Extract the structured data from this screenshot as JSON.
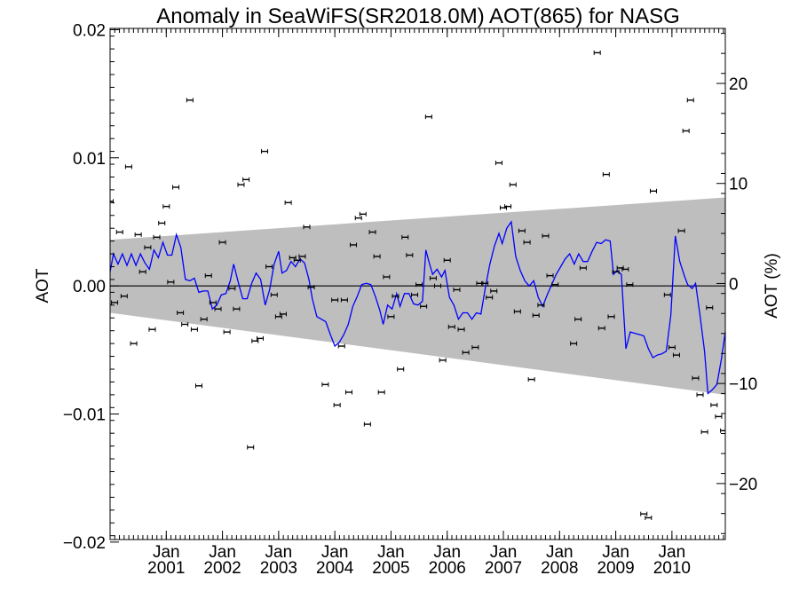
{
  "chart_data": {
    "type": "scatter",
    "title": "Anomaly in SeaWiFS(SR2018.0M) AOT(865) for NASG",
    "xlabel": "",
    "ylabel": "AOT",
    "y2label": "AOT (%)",
    "xlim": [
      2000.0,
      2010.95
    ],
    "ylim": [
      -0.0198,
      0.0201
    ],
    "y2lim": [
      -25.6,
      25.5
    ],
    "grid": false,
    "x_ticks": [
      {
        "x": 2001.0,
        "label1": "Jan",
        "label2": "2001"
      },
      {
        "x": 2002.0,
        "label1": "Jan",
        "label2": "2002"
      },
      {
        "x": 2003.0,
        "label1": "Jan",
        "label2": "2003"
      },
      {
        "x": 2004.0,
        "label1": "Jan",
        "label2": "2004"
      },
      {
        "x": 2005.0,
        "label1": "Jan",
        "label2": "2005"
      },
      {
        "x": 2006.0,
        "label1": "Jan",
        "label2": "2006"
      },
      {
        "x": 2007.0,
        "label1": "Jan",
        "label2": "2007"
      },
      {
        "x": 2008.0,
        "label1": "Jan",
        "label2": "2008"
      },
      {
        "x": 2009.0,
        "label1": "Jan",
        "label2": "2009"
      },
      {
        "x": 2010.0,
        "label1": "Jan",
        "label2": "2010"
      }
    ],
    "y_ticks": [
      {
        "v": 0.02,
        "label": "0.02"
      },
      {
        "v": 0.01,
        "label": "0.01"
      },
      {
        "v": 0.0,
        "label": "0.00"
      },
      {
        "v": -0.01,
        "label": "−0.01"
      },
      {
        "v": -0.02,
        "label": "−0.02"
      }
    ],
    "y2_ticks": [
      {
        "v": 20,
        "label": "20"
      },
      {
        "v": 10,
        "label": "10"
      },
      {
        "v": 0,
        "label": "0"
      },
      {
        "v": -10,
        "label": "−10"
      },
      {
        "v": -20,
        "label": "−20"
      }
    ],
    "colors": {
      "band": "#bebebe",
      "line": "#0000ff",
      "points": "#000000",
      "zero": "#000000"
    },
    "band": {
      "x": [
        2000.0,
        2010.95
      ],
      "upper": [
        0.0036,
        0.0069
      ],
      "lower": [
        -0.0021,
        -0.0085
      ]
    },
    "points": [
      [
        2000.0,
        0.0066
      ],
      [
        2000.08,
        -0.0013
      ],
      [
        2000.17,
        0.0042
      ],
      [
        2000.25,
        -0.0008
      ],
      [
        2000.33,
        0.0093
      ],
      [
        2000.42,
        -0.0045
      ],
      [
        2000.5,
        0.004
      ],
      [
        2000.58,
        0.0011
      ],
      [
        2000.67,
        0.003
      ],
      [
        2000.75,
        -0.0034
      ],
      [
        2000.83,
        0.0038
      ],
      [
        2000.92,
        0.0049
      ],
      [
        2001.0,
        0.0062
      ],
      [
        2001.08,
        0.0003
      ],
      [
        2001.17,
        0.0077
      ],
      [
        2001.25,
        -0.0021
      ],
      [
        2001.33,
        -0.003
      ],
      [
        2001.42,
        0.0145
      ],
      [
        2001.5,
        -0.0034
      ],
      [
        2001.58,
        -0.0078
      ],
      [
        2001.67,
        -0.0026
      ],
      [
        2001.75,
        0.0008
      ],
      [
        2001.83,
        -0.0013
      ],
      [
        2001.92,
        -0.0018
      ],
      [
        2002.0,
        0.0034
      ],
      [
        2002.08,
        -0.0036
      ],
      [
        2002.17,
        -0.0002
      ],
      [
        2002.25,
        -0.0018
      ],
      [
        2002.33,
        0.0079
      ],
      [
        2002.42,
        0.0083
      ],
      [
        2002.5,
        -0.0126
      ],
      [
        2002.58,
        -0.0043
      ],
      [
        2002.67,
        -0.0041
      ],
      [
        2002.75,
        0.0105
      ],
      [
        2002.83,
        0.0015
      ],
      [
        2002.92,
        -0.0007
      ],
      [
        2003.0,
        -0.0024
      ],
      [
        2003.08,
        -0.0022
      ],
      [
        2003.17,
        0.0065
      ],
      [
        2003.25,
        0.0022
      ],
      [
        2003.33,
        0.002
      ],
      [
        2003.42,
        0.0023
      ],
      [
        2003.5,
        0.0046
      ],
      [
        2003.58,
        -0.0001
      ],
      [
        2003.83,
        -0.0077
      ],
      [
        2004.0,
        -0.0011
      ],
      [
        2004.04,
        -0.0093
      ],
      [
        2004.12,
        -0.0047
      ],
      [
        2004.17,
        -0.0011
      ],
      [
        2004.25,
        -0.0083
      ],
      [
        2004.33,
        0.0032
      ],
      [
        2004.42,
        0.0053
      ],
      [
        2004.5,
        0.0056
      ],
      [
        2004.58,
        -0.0108
      ],
      [
        2004.67,
        0.0042
      ],
      [
        2004.75,
        0.0023
      ],
      [
        2004.83,
        -0.0083
      ],
      [
        2004.92,
        0.0007
      ],
      [
        2005.0,
        -0.0024
      ],
      [
        2005.08,
        -0.0008
      ],
      [
        2005.17,
        -0.0065
      ],
      [
        2005.25,
        0.0038
      ],
      [
        2005.33,
        0.0024
      ],
      [
        2005.42,
        -0.0007
      ],
      [
        2005.5,
        0.0001
      ],
      [
        2005.58,
        -0.0016
      ],
      [
        2005.67,
        0.0132
      ],
      [
        2005.75,
        0.0006
      ],
      [
        2005.83,
        0.0
      ],
      [
        2005.92,
        -0.0058
      ],
      [
        2006.0,
        0.002
      ],
      [
        2006.08,
        -0.0032
      ],
      [
        2006.17,
        -0.0003
      ],
      [
        2006.25,
        -0.0034
      ],
      [
        2006.33,
        -0.0052
      ],
      [
        2006.5,
        -0.0048
      ],
      [
        2006.58,
        0.0002
      ],
      [
        2006.67,
        0.0002
      ],
      [
        2006.75,
        -0.0009
      ],
      [
        2006.83,
        -0.0004
      ],
      [
        2006.92,
        0.0096
      ],
      [
        2007.0,
        0.0061
      ],
      [
        2007.08,
        0.0062
      ],
      [
        2007.17,
        0.0079
      ],
      [
        2007.25,
        -0.002
      ],
      [
        2007.33,
        0.0043
      ],
      [
        2007.42,
        0.0034
      ],
      [
        2007.5,
        -0.0073
      ],
      [
        2007.58,
        -0.0023
      ],
      [
        2007.67,
        -0.0015
      ],
      [
        2007.75,
        0.0039
      ],
      [
        2007.83,
        0.0008
      ],
      [
        2007.92,
        0.0001
      ],
      [
        2008.25,
        -0.0045
      ],
      [
        2008.33,
        -0.0026
      ],
      [
        2008.42,
        0.0014
      ],
      [
        2008.67,
        0.0182
      ],
      [
        2008.75,
        -0.0033
      ],
      [
        2008.83,
        0.0087
      ],
      [
        2008.92,
        -0.0024
      ],
      [
        2009.0,
        0.0011
      ],
      [
        2009.08,
        0.0014
      ],
      [
        2009.17,
        0.0013
      ],
      [
        2009.25,
        0.0001
      ],
      [
        2009.5,
        -0.0178
      ],
      [
        2009.58,
        -0.0181
      ],
      [
        2009.67,
        0.0074
      ],
      [
        2009.92,
        -0.0007
      ],
      [
        2010.0,
        -0.0048
      ],
      [
        2010.08,
        -0.0054
      ],
      [
        2010.17,
        0.0043
      ],
      [
        2010.25,
        0.0121
      ],
      [
        2010.33,
        0.0145
      ],
      [
        2010.42,
        -0.0072
      ],
      [
        2010.5,
        -0.0085
      ],
      [
        2010.58,
        -0.0114
      ],
      [
        2010.67,
        -0.0017
      ],
      [
        2010.75,
        -0.0093
      ],
      [
        2010.83,
        -0.0102
      ],
      [
        2010.92,
        -0.0113
      ]
    ],
    "line": [
      [
        2000.0,
        0.0011
      ],
      [
        2000.06,
        0.0025
      ],
      [
        2000.14,
        0.0017
      ],
      [
        2000.22,
        0.0025
      ],
      [
        2000.3,
        0.0016
      ],
      [
        2000.38,
        0.0025
      ],
      [
        2000.46,
        0.0016
      ],
      [
        2000.54,
        0.0025
      ],
      [
        2000.62,
        0.0018
      ],
      [
        2000.7,
        0.0013
      ],
      [
        2000.78,
        0.0028
      ],
      [
        2000.86,
        0.0022
      ],
      [
        2000.94,
        0.0034
      ],
      [
        2001.02,
        0.0024
      ],
      [
        2001.1,
        0.0024
      ],
      [
        2001.18,
        0.004
      ],
      [
        2001.26,
        0.003
      ],
      [
        2001.34,
        0.0005
      ],
      [
        2001.42,
        0.0004
      ],
      [
        2001.5,
        0.0006
      ],
      [
        2001.58,
        -0.0005
      ],
      [
        2001.66,
        -0.0004
      ],
      [
        2001.74,
        -0.0004
      ],
      [
        2001.82,
        -0.0018
      ],
      [
        2001.9,
        -0.0015
      ],
      [
        2001.98,
        -0.0007
      ],
      [
        2002.06,
        -0.0006
      ],
      [
        2002.14,
        0.0004
      ],
      [
        2002.2,
        0.0017
      ],
      [
        2002.28,
        0.0003
      ],
      [
        2002.36,
        -0.001
      ],
      [
        2002.44,
        -0.001
      ],
      [
        2002.52,
        0.0002
      ],
      [
        2002.6,
        0.001
      ],
      [
        2002.68,
        0.0005
      ],
      [
        2002.76,
        -0.0015
      ],
      [
        2002.84,
        -0.0003
      ],
      [
        2002.92,
        0.0017
      ],
      [
        2003.0,
        0.0027
      ],
      [
        2003.06,
        0.001
      ],
      [
        2003.14,
        0.0012
      ],
      [
        2003.22,
        0.0019
      ],
      [
        2003.3,
        0.0015
      ],
      [
        2003.38,
        0.0021
      ],
      [
        2003.46,
        0.0018
      ],
      [
        2003.54,
        0.0005
      ],
      [
        2003.6,
        -0.001
      ],
      [
        2003.68,
        -0.0024
      ],
      [
        2003.76,
        -0.0026
      ],
      [
        2003.84,
        -0.0028
      ],
      [
        2003.92,
        -0.0038
      ],
      [
        2004.0,
        -0.0047
      ],
      [
        2004.08,
        -0.0044
      ],
      [
        2004.16,
        -0.0038
      ],
      [
        2004.24,
        -0.003
      ],
      [
        2004.32,
        -0.0016
      ],
      [
        2004.4,
        -0.0008
      ],
      [
        2004.48,
        0.0001
      ],
      [
        2004.56,
        0.0002
      ],
      [
        2004.64,
        0.0001
      ],
      [
        2004.72,
        -0.0008
      ],
      [
        2004.8,
        -0.0019
      ],
      [
        2004.86,
        -0.003
      ],
      [
        2004.94,
        -0.0015
      ],
      [
        2005.02,
        -0.0018
      ],
      [
        2005.1,
        -0.0006
      ],
      [
        2005.16,
        -0.0016
      ],
      [
        2005.24,
        -0.0006
      ],
      [
        2005.32,
        -0.0006
      ],
      [
        2005.4,
        -0.0014
      ],
      [
        2005.48,
        -0.0015
      ],
      [
        2005.56,
        -0.0012
      ],
      [
        2005.62,
        0.0028
      ],
      [
        2005.68,
        0.0018
      ],
      [
        2005.74,
        0.0009
      ],
      [
        2005.82,
        0.0013
      ],
      [
        2005.9,
        0.0007
      ],
      [
        2005.96,
        0.0012
      ],
      [
        2006.04,
        -0.0009
      ],
      [
        2006.12,
        -0.0015
      ],
      [
        2006.2,
        -0.0026
      ],
      [
        2006.28,
        -0.0021
      ],
      [
        2006.36,
        -0.0021
      ],
      [
        2006.44,
        -0.0026
      ],
      [
        2006.52,
        -0.0021
      ],
      [
        2006.6,
        -0.0022
      ],
      [
        2006.68,
        -0.0001
      ],
      [
        2006.76,
        0.0017
      ],
      [
        2006.84,
        0.0031
      ],
      [
        2006.92,
        0.0041
      ],
      [
        2006.98,
        0.0033
      ],
      [
        2007.06,
        0.0045
      ],
      [
        2007.14,
        0.005
      ],
      [
        2007.22,
        0.0023
      ],
      [
        2007.3,
        0.0012
      ],
      [
        2007.38,
        0.0004
      ],
      [
        2007.46,
        0.0
      ],
      [
        2007.54,
        0.0004
      ],
      [
        2007.62,
        -0.0009
      ],
      [
        2007.7,
        -0.0016
      ],
      [
        2007.78,
        -0.0007
      ],
      [
        2007.86,
        0.0001
      ],
      [
        2007.94,
        0.0009
      ],
      [
        2008.02,
        0.0015
      ],
      [
        2008.1,
        0.0021
      ],
      [
        2008.18,
        0.0025
      ],
      [
        2008.26,
        0.0017
      ],
      [
        2008.34,
        0.0025
      ],
      [
        2008.42,
        0.0019
      ],
      [
        2008.5,
        0.0019
      ],
      [
        2008.58,
        0.0027
      ],
      [
        2008.66,
        0.0034
      ],
      [
        2008.74,
        0.0033
      ],
      [
        2008.82,
        0.0036
      ],
      [
        2008.9,
        0.0035
      ],
      [
        2008.96,
        0.0009
      ],
      [
        2009.02,
        0.0012
      ],
      [
        2009.1,
        0.0009
      ],
      [
        2009.18,
        -0.0049
      ],
      [
        2009.26,
        -0.0036
      ],
      [
        2009.34,
        -0.0037
      ],
      [
        2009.42,
        -0.0038
      ],
      [
        2009.5,
        -0.0039
      ],
      [
        2009.58,
        -0.0049
      ],
      [
        2009.66,
        -0.0056
      ],
      [
        2009.74,
        -0.0054
      ],
      [
        2009.82,
        -0.0053
      ],
      [
        2009.9,
        -0.0051
      ],
      [
        2009.98,
        -0.0023
      ],
      [
        2010.06,
        0.0039
      ],
      [
        2010.14,
        0.0019
      ],
      [
        2010.22,
        0.0008
      ],
      [
        2010.28,
        0.0001
      ],
      [
        2010.36,
        -0.0002
      ],
      [
        2010.42,
        0.0002
      ],
      [
        2010.5,
        -0.0023
      ],
      [
        2010.58,
        -0.0051
      ],
      [
        2010.64,
        -0.0084
      ],
      [
        2010.72,
        -0.0081
      ],
      [
        2010.8,
        -0.0077
      ],
      [
        2010.88,
        -0.0057
      ],
      [
        2010.95,
        -0.0036
      ]
    ]
  }
}
